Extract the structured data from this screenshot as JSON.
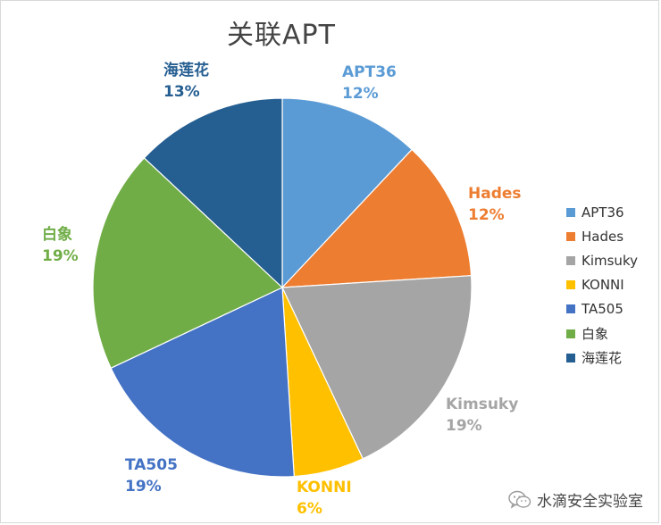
{
  "chart_data": {
    "type": "pie",
    "title": "关联APT",
    "start_angle_deg": 0,
    "direction": "clockwise",
    "slices": [
      {
        "name": "APT36",
        "value": 12,
        "label": "12%",
        "color": "#5B9BD5"
      },
      {
        "name": "Hades",
        "value": 12,
        "label": "12%",
        "color": "#ED7D31"
      },
      {
        "name": "Kimsuky",
        "value": 19,
        "label": "19%",
        "color": "#A5A5A5"
      },
      {
        "name": "KONNI",
        "value": 6,
        "label": "6%",
        "color": "#FFC000"
      },
      {
        "name": "TA505",
        "value": 19,
        "label": "19%",
        "color": "#4472C4"
      },
      {
        "name": "白象",
        "value": 19,
        "label": "19%",
        "color": "#70AD47"
      },
      {
        "name": "海莲花",
        "value": 13,
        "label": "13%",
        "color": "#255E91"
      }
    ],
    "legend_position": "right"
  },
  "watermark": {
    "text": "水滴安全实验室",
    "icon": "wechat-icon"
  }
}
